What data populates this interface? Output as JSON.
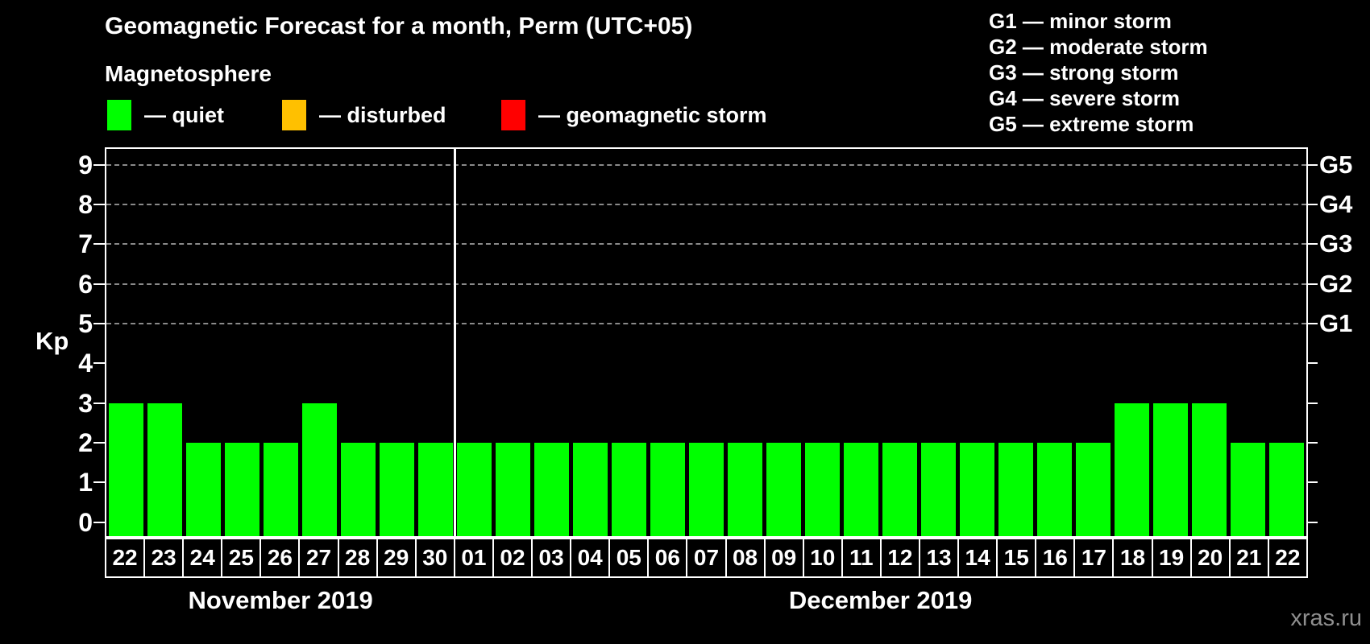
{
  "header": {
    "title": "Geomagnetic Forecast for a month, Perm (UTC+05)",
    "subtitle": "Magnetosphere",
    "legend": [
      {
        "name": "quiet",
        "label": "— quiet",
        "color": "#00ff00"
      },
      {
        "name": "disturbed",
        "label": "— disturbed",
        "color": "#ffc000"
      },
      {
        "name": "geomagnetic-storm",
        "label": "— geomagnetic storm",
        "color": "#ff0000"
      }
    ],
    "g_legend": [
      "G1 — minor storm",
      "G2 — moderate storm",
      "G3 — strong storm",
      "G4 — severe storm",
      "G5 — extreme storm"
    ]
  },
  "chart_data": {
    "type": "bar",
    "title": "Geomagnetic Forecast for a month, Perm (UTC+05)",
    "ylabel": "Kp",
    "ylim": [
      -0.35,
      9.4
    ],
    "yticks": [
      0,
      1,
      2,
      3,
      4,
      5,
      6,
      7,
      8,
      9
    ],
    "gridlines_at": [
      5,
      6,
      7,
      8,
      9
    ],
    "grid": "dashed, horizontal, at G-storm levels only",
    "legend_position": "top-left",
    "bar_color": "#00ff00",
    "right_axis_labels": [
      {
        "label": "G1",
        "kp": 5
      },
      {
        "label": "G2",
        "kp": 6
      },
      {
        "label": "G3",
        "kp": 7
      },
      {
        "label": "G4",
        "kp": 8
      },
      {
        "label": "G5",
        "kp": 9
      }
    ],
    "categories": [
      "22",
      "23",
      "24",
      "25",
      "26",
      "27",
      "28",
      "29",
      "30",
      "01",
      "02",
      "03",
      "04",
      "05",
      "06",
      "07",
      "08",
      "09",
      "10",
      "11",
      "12",
      "13",
      "14",
      "15",
      "16",
      "17",
      "18",
      "19",
      "20",
      "21",
      "22"
    ],
    "values": [
      3,
      3,
      2,
      2,
      2,
      3,
      2,
      2,
      2,
      2,
      2,
      2,
      2,
      2,
      2,
      2,
      2,
      2,
      2,
      2,
      2,
      2,
      2,
      2,
      2,
      2,
      3,
      3,
      3,
      2,
      2
    ],
    "months": [
      {
        "label": "November 2019",
        "days": 9
      },
      {
        "label": "December 2019",
        "days": 22
      }
    ]
  },
  "watermark": "xras.ru"
}
